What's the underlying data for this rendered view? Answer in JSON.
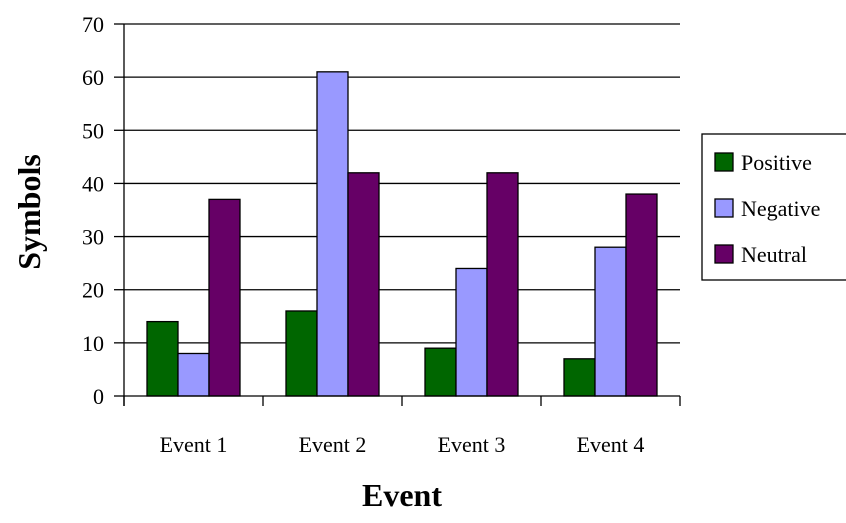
{
  "chart_data": {
    "type": "bar",
    "categories": [
      "Event 1",
      "Event 2",
      "Event 3",
      "Event 4"
    ],
    "series": [
      {
        "name": "Positive",
        "color": "#006600",
        "values": [
          14,
          16,
          9,
          7
        ]
      },
      {
        "name": "Negative",
        "color": "#9999ff",
        "values": [
          8,
          61,
          24,
          28
        ]
      },
      {
        "name": "Neutral",
        "color": "#660066",
        "values": [
          37,
          42,
          42,
          38
        ]
      }
    ],
    "xlabel": "Event",
    "ylabel": "Symbols",
    "ylim": [
      0,
      70
    ],
    "yticks": [
      0,
      10,
      20,
      30,
      40,
      50,
      60,
      70
    ],
    "grid": true,
    "legend": "right"
  }
}
